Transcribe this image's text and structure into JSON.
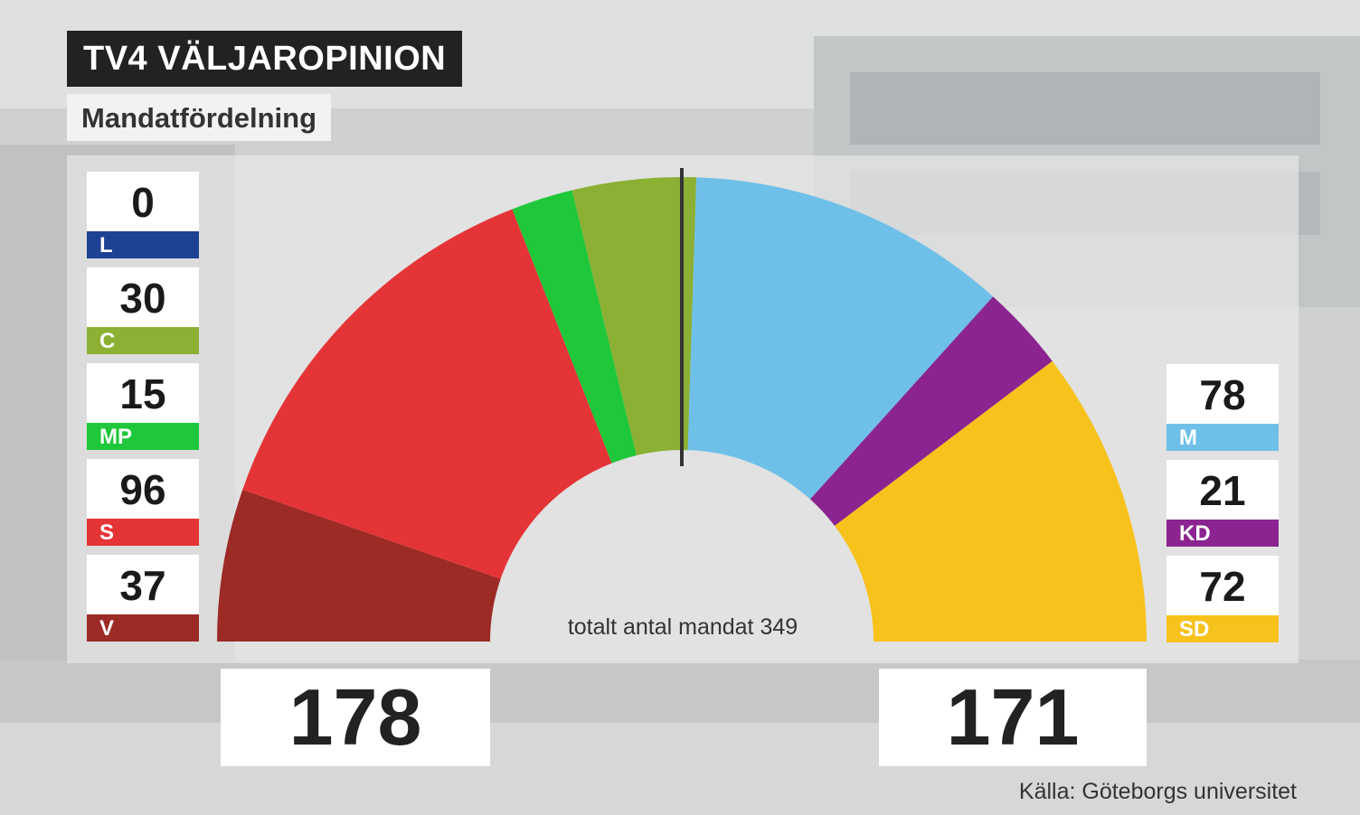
{
  "brand": "TV4 VÄLJAROPINION",
  "subtitle": "Mandatfördelning",
  "total_label": "totalt antal mandat 349",
  "source": "Källa: Göteborgs universitet",
  "blocks": {
    "left": "178",
    "right": "171"
  },
  "parties_left": [
    {
      "abbr": "L",
      "seats": "0",
      "color": "#1d4193"
    },
    {
      "abbr": "C",
      "seats": "30",
      "color": "#8bb034"
    },
    {
      "abbr": "MP",
      "seats": "15",
      "color": "#1fc73a"
    },
    {
      "abbr": "S",
      "seats": "96",
      "color": "#e53437"
    },
    {
      "abbr": "V",
      "seats": "37",
      "color": "#9c2a25"
    }
  ],
  "parties_right": [
    {
      "abbr": "M",
      "seats": "78",
      "color": "#6fc0e9"
    },
    {
      "abbr": "KD",
      "seats": "21",
      "color": "#8b2491"
    },
    {
      "abbr": "SD",
      "seats": "72",
      "color": "#f8c21c"
    }
  ],
  "chart_data": {
    "type": "pie",
    "variant": "parliament-half-donut",
    "total": 349,
    "majority_line": true,
    "categories": [
      "V",
      "S",
      "MP",
      "C",
      "L",
      "M",
      "KD",
      "SD"
    ],
    "values": [
      37,
      96,
      15,
      30,
      0,
      78,
      21,
      72
    ],
    "colors": [
      "#9c2a25",
      "#e53437",
      "#1fc73a",
      "#8bb034",
      "#1d4193",
      "#6fc0e9",
      "#8b2491",
      "#f8c21c"
    ]
  }
}
